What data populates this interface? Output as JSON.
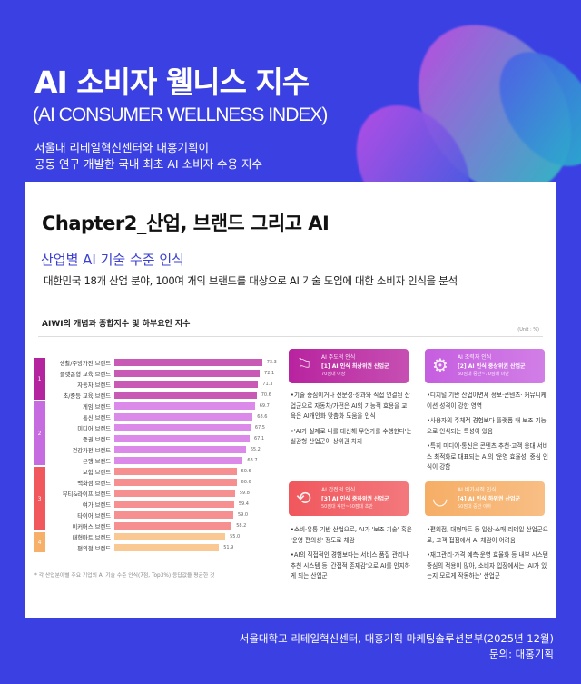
{
  "header": {
    "title": "AI 소비자 웰니스 지수",
    "subtitle": "(AI CONSUMER WELLNESS INDEX)",
    "desc1": "서울대 리테일혁신센터와 대홍기획이",
    "desc2": "공동 연구 개발한 국내 최초 AI 소비자 수용 지수"
  },
  "panel": {
    "chapter": "Chapter2_산업, 브랜드 그리고 AI",
    "section": "산업별 AI 기술 수준 인식",
    "intro": "대한민국 18개 산업 분야, 100여 개의 브랜드를 대상으로 AI 기술 도입에 대한 소비자 인식을 분석"
  },
  "chart_data": {
    "type": "bar",
    "orientation": "horizontal",
    "title": "AIWI의 개념과 종합지수 및 하부요인 지수",
    "unit": "(Unit : %)",
    "categories": [
      "생활/주방가전 브랜드",
      "플랫폼형 교육 브랜드",
      "자동차 브랜드",
      "초/중등 교육 브랜드",
      "게임 브랜드",
      "통신 브랜드",
      "미디어 브랜드",
      "증권 브랜드",
      "건강가전 브랜드",
      "은행 브랜드",
      "보험 브랜드",
      "백화점 브랜드",
      "뷰티&라이프 브랜드",
      "여가 브랜드",
      "타이어 브랜드",
      "이커머스 브랜드",
      "대형마트 브랜드",
      "편의점 브랜드"
    ],
    "values": [
      73.3,
      72.1,
      71.3,
      70.6,
      69.7,
      68.6,
      67.5,
      67.1,
      65.2,
      63.7,
      60.6,
      60.6,
      59.8,
      59.4,
      59.0,
      58.2,
      55.0,
      51.9
    ],
    "groups": [
      {
        "label": "1",
        "count": 4,
        "color": "#b3249e",
        "bar": "#c85ab6"
      },
      {
        "label": "2",
        "count": 6,
        "color": "#c66be0",
        "bar": "#db8ae9"
      },
      {
        "label": "3",
        "count": 6,
        "color": "#f0585d",
        "bar": "#f68f8f"
      },
      {
        "label": "4",
        "count": 2,
        "color": "#f6b06a",
        "bar": "#f9c893"
      }
    ],
    "note": "* 각 산업분야별 주요 기업의 AI 기술 수준 인식(7점, Top3%) 응답값을 평균한 것"
  },
  "cards": [
    {
      "icon": "presenter-flag-icon",
      "label": "AI 주도적 인식",
      "tier": "[1] AI 인식 최상위권 산업군",
      "range": "70점대 이상",
      "color": "#b8239f",
      "points": [
        "•기술 중심이거나 전문성·성과와 직접 연결된 산업군으로 자동차/가전은 AI의 기능적 효용을 교육은 AI개인화 맞춤화 도움을 인식",
        "•'AI가 실제로 나를 대신해 무언가를 수행한다'는 실감형 산업군이 상위권 차지"
      ]
    },
    {
      "icon": "team-gear-icon",
      "label": "AI 조력자 인식",
      "tier": "[2] AI 인식 중상위권 산업군",
      "range": "60점대 중반~70점대 미만",
      "color": "#c65ee0",
      "points": [
        "•디지털 기반 산업이면서 정보·콘텐츠· 커뮤니케이션 성격이 강한 영역",
        "•사용자의 주체적 경험보다 플랫폼 내 보조 기능으로 인식되는 특성이 있음",
        "•특히 미디어·통신은 콘텐츠 추천·고객 응대 서비스 최적화로 대표되는 AI의 '운영 효율성' 중심 인식이 강함"
      ]
    },
    {
      "icon": "hands-cycle-icon",
      "label": "AI 간접적 인식",
      "tier": "[3] AI 인식 중하위권 산업군",
      "range": "50점대 후반~60점대 초반",
      "color": "#f0575c",
      "points": [
        "•소비·유통 기반 산업으로, AI가 '보조 기술' 혹은 '운영 편의성' 정도로 체감",
        "•AI의 직접적인 경험보다는 서비스 품질 관리나 추천 시스템 등 '간접적 존재감'으로 AI를 인지하게 되는 산업군"
      ]
    },
    {
      "icon": "closed-eye-icon",
      "label": "AI 비가시적 인식",
      "tier": "[4] AI 인식 하위권 산업군",
      "range": "50점대 중반 이하",
      "color": "#f6ae66",
      "points": [
        "•편의점, 대형마트 등 일상·소매 리테일 산업군으로, 고객 접점에서 AI 체감이 어려움",
        "•재고관리·가격 예측·운영 효율화 등 내부 시스템 중심의 적용이 많아, 소비자 입장에서는 'AI가 있는지 모르게 작동하는' 산업군"
      ]
    }
  ],
  "footer": {
    "credit": "서울대학교 리테일혁신센터, 대홍기획 마케팅솔루션본부(2025년 12월)",
    "contact": "문의: 대홍기획"
  }
}
